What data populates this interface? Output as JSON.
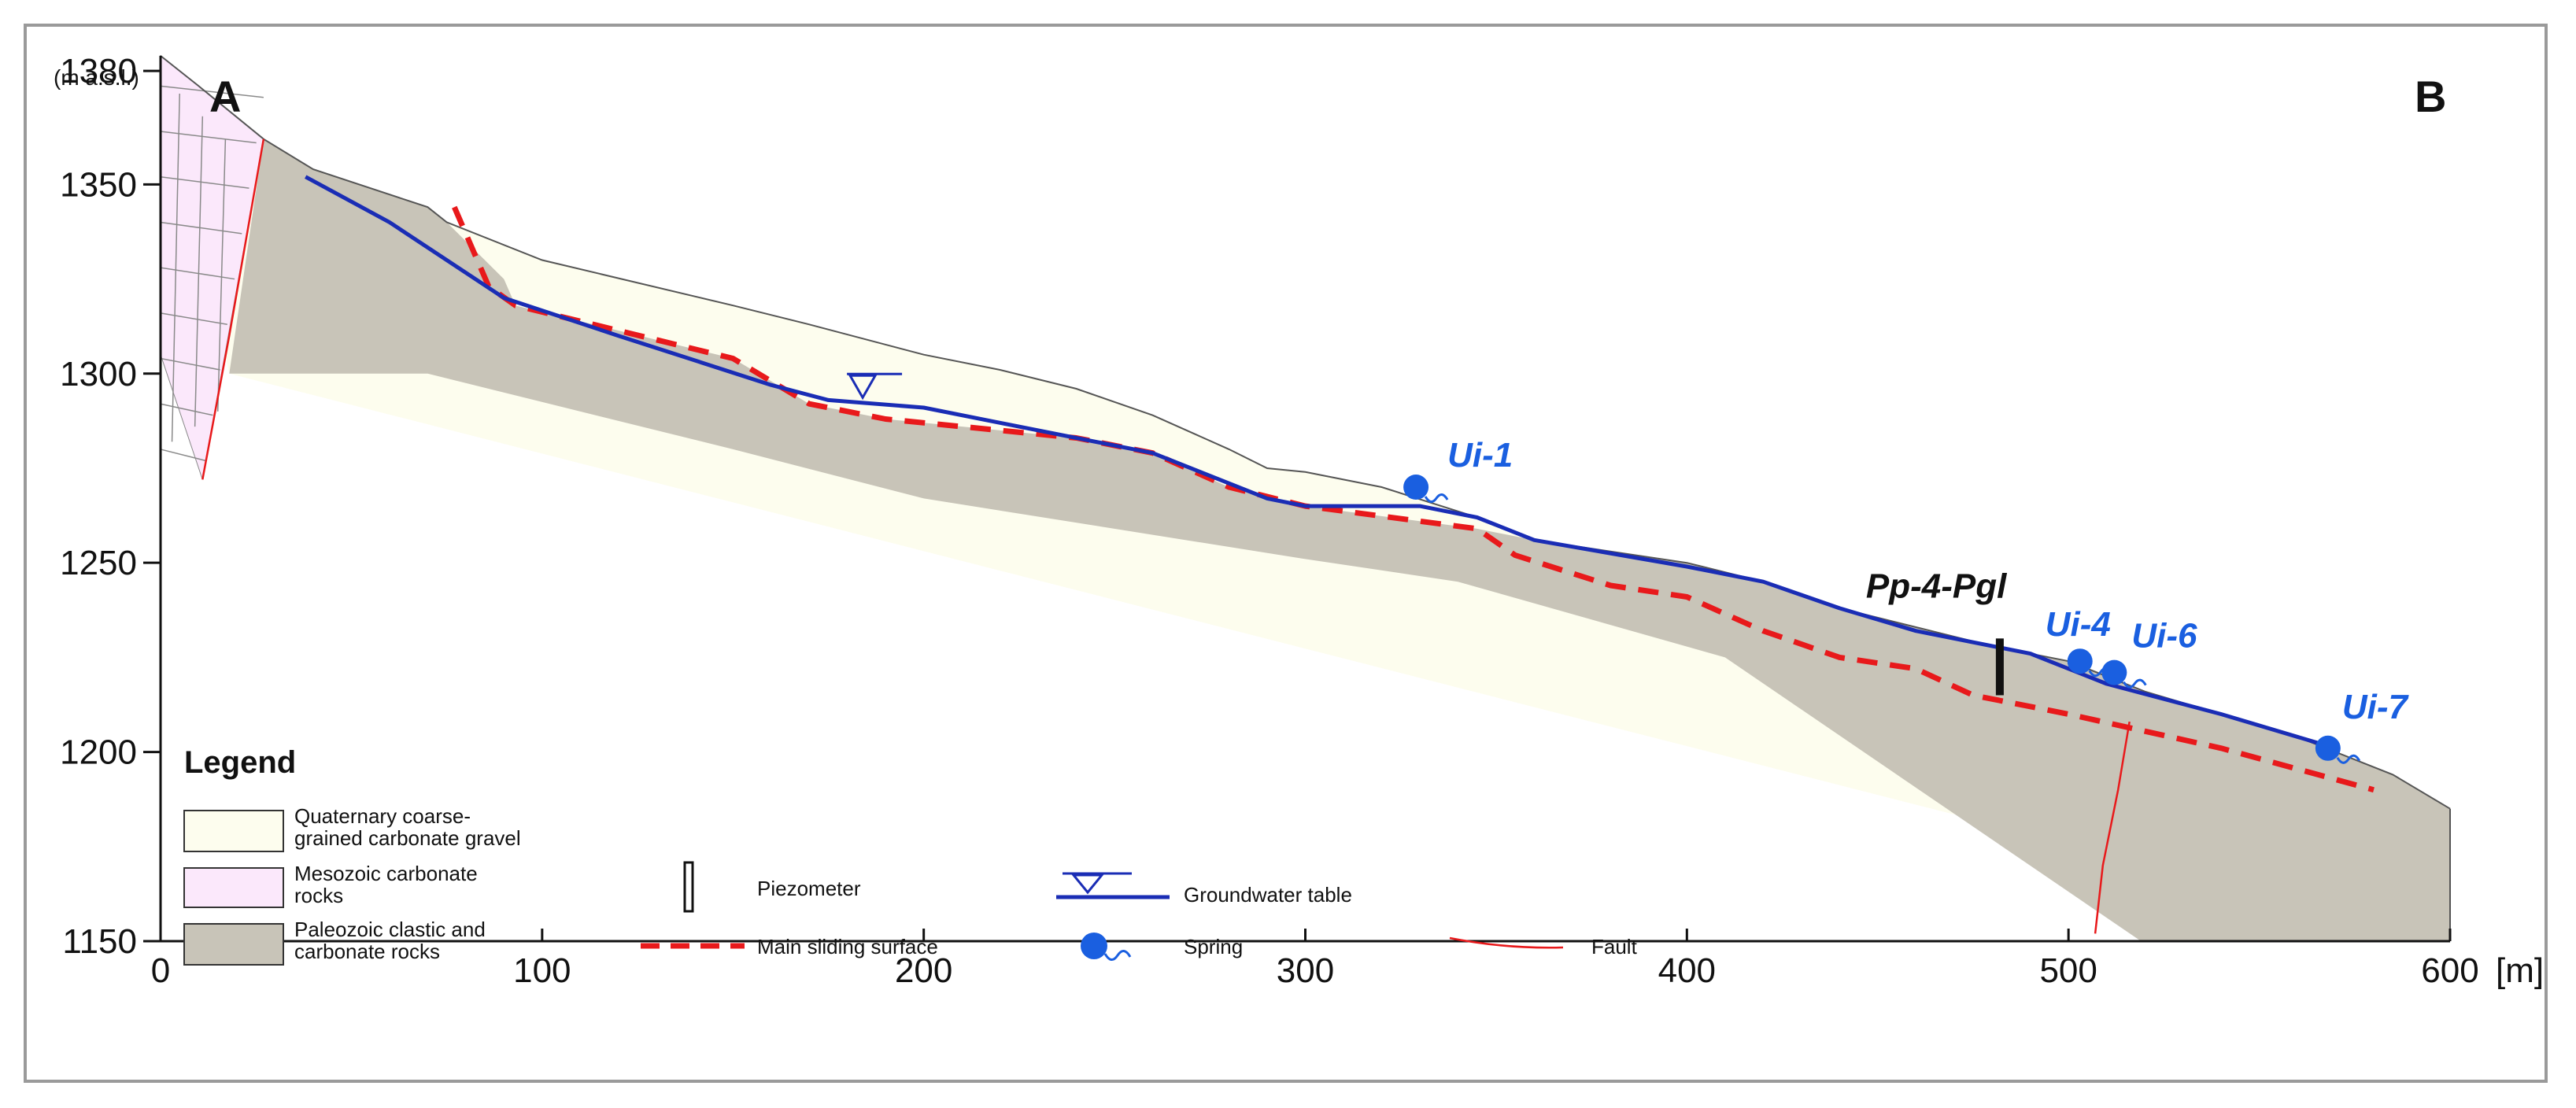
{
  "chart_data": {
    "type": "cross-section",
    "section_start": "A",
    "section_end": "B",
    "y_unit": "(m a.s.l.)",
    "x_unit": "[m]",
    "xlim": [
      0,
      600
    ],
    "ylim": [
      1150,
      1385
    ],
    "x_ticks": [
      "0",
      "100",
      "200",
      "300",
      "400",
      "500",
      "600"
    ],
    "y_ticks": [
      "1150",
      "1200",
      "1250",
      "1300",
      "1350",
      "1380"
    ],
    "colors": {
      "gravel": "#fdfdee",
      "mesozoic": "#fbe8fb",
      "paleozoic": "#c8c4b8",
      "groundwater": "#1a2db5",
      "sliding": "#e8191b",
      "fault": "#e8191b",
      "spring": "#1a5fe0",
      "outline": "#555555"
    },
    "springs": [
      {
        "label": "Ui-1",
        "x": 329,
        "y": 1270
      },
      {
        "label": "Ui-4",
        "x": 503,
        "y": 1224
      },
      {
        "label": "Ui-6",
        "x": 512,
        "y": 1221
      },
      {
        "label": "Ui-7",
        "x": 568,
        "y": 1201
      }
    ],
    "piezometer": {
      "label": "Pp-4-Pgl",
      "x": 482,
      "y_top": 1230,
      "y_bottom": 1215
    },
    "water_table_marker": {
      "x": 184,
      "y": 1292
    },
    "topography": [
      [
        0,
        1384
      ],
      [
        10,
        1376
      ],
      [
        27,
        1362
      ],
      [
        40,
        1354
      ],
      [
        70,
        1344
      ],
      [
        75,
        1340
      ],
      [
        100,
        1330
      ],
      [
        150,
        1318
      ],
      [
        170,
        1313
      ],
      [
        200,
        1305
      ],
      [
        220,
        1301
      ],
      [
        240,
        1296
      ],
      [
        260,
        1289
      ],
      [
        280,
        1280
      ],
      [
        290,
        1275
      ],
      [
        300,
        1274
      ],
      [
        320,
        1270
      ],
      [
        345,
        1262
      ],
      [
        360,
        1256
      ],
      [
        400,
        1250
      ],
      [
        420,
        1245
      ],
      [
        440,
        1238
      ],
      [
        480,
        1228
      ],
      [
        500,
        1224
      ],
      [
        520,
        1216
      ],
      [
        560,
        1204
      ],
      [
        585,
        1194
      ],
      [
        600,
        1185
      ]
    ],
    "water_table": [
      [
        38,
        1352
      ],
      [
        60,
        1340
      ],
      [
        90,
        1320
      ],
      [
        120,
        1310
      ],
      [
        160,
        1297
      ],
      [
        175,
        1293
      ],
      [
        200,
        1291
      ],
      [
        220,
        1287
      ],
      [
        260,
        1279
      ],
      [
        290,
        1267
      ],
      [
        300,
        1265
      ],
      [
        330,
        1265
      ],
      [
        345,
        1262
      ],
      [
        360,
        1256
      ],
      [
        400,
        1249
      ],
      [
        420,
        1245
      ],
      [
        440,
        1238
      ],
      [
        460,
        1232
      ],
      [
        490,
        1226
      ],
      [
        510,
        1218
      ],
      [
        540,
        1210
      ],
      [
        570,
        1201
      ]
    ],
    "sliding_surface": [
      [
        77,
        1344
      ],
      [
        86,
        1323
      ],
      [
        93,
        1318
      ],
      [
        150,
        1304
      ],
      [
        170,
        1292
      ],
      [
        190,
        1288
      ],
      [
        240,
        1283
      ],
      [
        260,
        1279
      ],
      [
        280,
        1270
      ],
      [
        300,
        1265
      ],
      [
        330,
        1261
      ],
      [
        345,
        1259
      ],
      [
        355,
        1252
      ],
      [
        380,
        1244
      ],
      [
        400,
        1241
      ],
      [
        420,
        1232
      ],
      [
        440,
        1225
      ],
      [
        460,
        1222
      ],
      [
        475,
        1215
      ],
      [
        500,
        1210
      ],
      [
        540,
        1201
      ],
      [
        580,
        1190
      ]
    ],
    "paleozoic": [
      [
        27,
        1362
      ],
      [
        40,
        1354
      ],
      [
        70,
        1344
      ],
      [
        75,
        1340
      ],
      [
        90,
        1325
      ],
      [
        93,
        1318
      ],
      [
        150,
        1304
      ],
      [
        170,
        1292
      ],
      [
        190,
        1288
      ],
      [
        240,
        1283
      ],
      [
        260,
        1279
      ],
      [
        280,
        1270
      ],
      [
        300,
        1265
      ],
      [
        330,
        1261
      ],
      [
        345,
        1259
      ],
      [
        360,
        1256
      ],
      [
        400,
        1250
      ],
      [
        420,
        1245
      ],
      [
        440,
        1238
      ],
      [
        480,
        1228
      ],
      [
        500,
        1224
      ],
      [
        520,
        1216
      ],
      [
        560,
        1204
      ],
      [
        585,
        1194
      ],
      [
        600,
        1185
      ],
      [
        600,
        1150
      ],
      [
        519,
        1150
      ],
      [
        410,
        1225
      ],
      [
        340,
        1245
      ],
      [
        300,
        1251
      ],
      [
        200,
        1267
      ],
      [
        150,
        1280
      ],
      [
        70,
        1300
      ],
      [
        18,
        1300
      ]
    ],
    "mesozoic": [
      [
        0,
        1384
      ],
      [
        10,
        1376
      ],
      [
        27,
        1362
      ],
      [
        11,
        1272
      ],
      [
        0,
        1305
      ]
    ],
    "faults": [
      [
        [
          11,
          1272
        ],
        [
          18,
          1310
        ],
        [
          27,
          1362
        ]
      ],
      [
        [
          516,
          1208
        ],
        [
          513,
          1190
        ],
        [
          509,
          1170
        ],
        [
          507,
          1152
        ]
      ]
    ]
  },
  "legend": {
    "title": "Legend",
    "items": [
      {
        "label_line1": "Quaternary coarse-",
        "label_line2": "grained carbonate gravel"
      },
      {
        "label_line1": "Mesozoic carbonate",
        "label_line2": "rocks"
      },
      {
        "label_line1": "Paleozoic clastic and",
        "label_line2": "carbonate rocks"
      }
    ],
    "symbols": {
      "piezometer": "Piezometer",
      "sliding": "Main sliding surface",
      "groundwater": "Groundwater table",
      "spring": "Spring",
      "fault": "Fault"
    }
  }
}
